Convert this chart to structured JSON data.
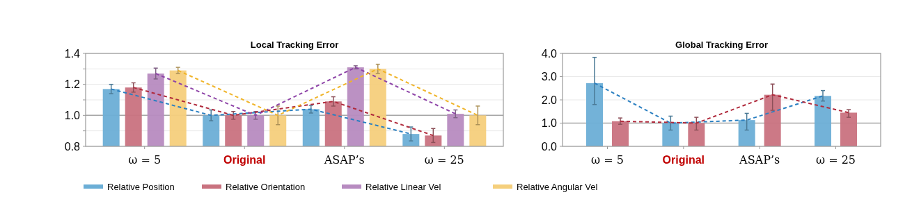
{
  "chart_data": [
    {
      "type": "bar",
      "title": "Local Tracking Error",
      "categories": [
        "ω = 5",
        "Original",
        "ASAP’s",
        "ω = 25"
      ],
      "ylim": [
        0.8,
        1.4
      ],
      "yticks": [
        0.8,
        {
          "value": 0.9,
          "label": null
        },
        {
          "value": 1.0,
          "label": "1.0"
        },
        {
          "value": 1.1,
          "label": null
        },
        1.2,
        {
          "value": 1.3,
          "label": null
        },
        1.4
      ],
      "grid": "y",
      "legend": "bottom",
      "ref_lines": [
        {
          "axis": "y",
          "value": 1.0,
          "color": "#a6a6a6"
        }
      ],
      "series": [
        {
          "name": "Relative Position",
          "color": "#6baed6",
          "values": [
            1.17,
            1.0,
            1.04,
            0.88
          ],
          "errors": [
            0.03,
            0.035,
            0.025,
            0.045
          ]
        },
        {
          "name": "Relative Orientation",
          "color": "#c9727f",
          "values": [
            1.18,
            1.0,
            1.09,
            0.87
          ],
          "errors": [
            0.03,
            0.025,
            0.03,
            0.045
          ]
        },
        {
          "name": "Relative Linear Vel",
          "color": "#b78bc0",
          "values": [
            1.27,
            1.0,
            1.31,
            1.01
          ],
          "errors": [
            0.035,
            0.025,
            0.01,
            0.025
          ]
        },
        {
          "name": "Relative Angular Vel",
          "color": "#f5cf7c",
          "values": [
            1.29,
            1.0,
            1.3,
            1.0
          ],
          "errors": [
            0.02,
            0.06,
            0.03,
            0.06
          ]
        },
        {
          "type": "line",
          "line_style": "dashed",
          "color": "#2a7fc1",
          "values": [
            1.17,
            1.0,
            1.04,
            0.88
          ]
        },
        {
          "type": "line",
          "line_style": "dashed",
          "color": "#b02a3c",
          "values": [
            1.18,
            1.0,
            1.09,
            0.87
          ]
        },
        {
          "type": "line",
          "line_style": "dashed",
          "color": "#8e44a8",
          "values": [
            1.27,
            1.0,
            1.31,
            1.01
          ]
        },
        {
          "type": "line",
          "line_style": "dashed",
          "color": "#f0b429",
          "values": [
            1.29,
            1.0,
            1.3,
            1.0
          ]
        }
      ]
    },
    {
      "type": "bar",
      "title": "Global Tracking Error",
      "categories": [
        "ω = 5",
        "Original",
        "ASAP’s",
        "ω = 25"
      ],
      "ylim": [
        0,
        4
      ],
      "yticks": [
        {
          "value": 0,
          "label": "0.0"
        },
        {
          "value": 1,
          "label": "1.0"
        },
        {
          "value": 2,
          "label": "2.0"
        },
        {
          "value": 3,
          "label": "3.0"
        },
        {
          "value": 4,
          "label": "4.0"
        }
      ],
      "grid": "y",
      "ref_lines": [
        {
          "axis": "y",
          "value": 1.0,
          "color": "#a6a6a6"
        }
      ],
      "series": [
        {
          "color": "#6baed6",
          "values": [
            2.72,
            1.0,
            1.13,
            2.17
          ],
          "errors": [
            [
              1.8,
              3.83
            ],
            0.3,
            [
              0.7,
              1.42
            ],
            [
              1.95,
              2.4
            ]
          ]
        },
        {
          "color": "#c9727f",
          "values": [
            1.08,
            1.0,
            2.22,
            1.45
          ],
          "errors": [
            [
              0.95,
              1.22
            ],
            [
              0.7,
              1.25
            ],
            [
              1.55,
              2.68
            ],
            [
              1.25,
              1.58
            ]
          ]
        },
        {
          "type": "line",
          "line_style": "dashed",
          "color": "#2a7fc1",
          "values": [
            2.72,
            1.0,
            1.13,
            2.17
          ]
        },
        {
          "type": "line",
          "line_style": "dashed",
          "color": "#b02a3c",
          "values": [
            1.08,
            1.0,
            2.22,
            1.45
          ]
        }
      ]
    }
  ]
}
